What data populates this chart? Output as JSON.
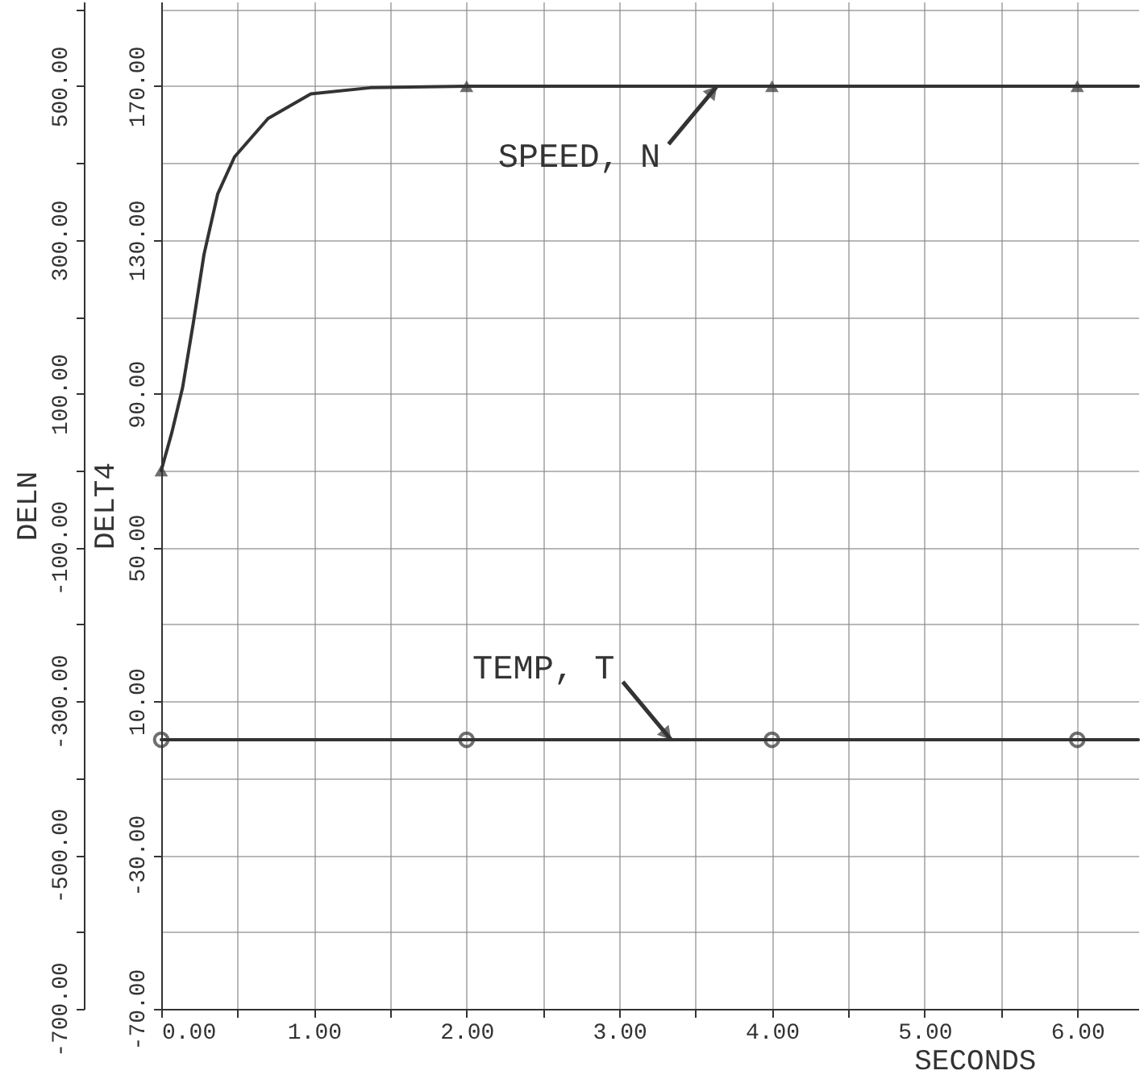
{
  "chart_data": {
    "type": "line",
    "xlabel": "SECONDS",
    "ylabel": "DELN",
    "y2label": "DELT4",
    "xlim": [
      0,
      6.4
    ],
    "xticks": [
      {
        "value": 0,
        "label": "0.00"
      },
      {
        "value": 0.5,
        "label": null
      },
      {
        "value": 1,
        "label": "1.00"
      },
      {
        "value": 1.5,
        "label": null
      },
      {
        "value": 2,
        "label": "2.00"
      },
      {
        "value": 2.5,
        "label": null
      },
      {
        "value": 3,
        "label": "3.00"
      },
      {
        "value": 3.5,
        "label": null
      },
      {
        "value": 4,
        "label": "4.00"
      },
      {
        "value": 4.5,
        "label": null
      },
      {
        "value": 5,
        "label": "5.00"
      },
      {
        "value": 5.5,
        "label": null
      },
      {
        "value": 6,
        "label": "6.00"
      }
    ],
    "ylim": [
      -700,
      610
    ],
    "yticks": [
      {
        "value": -700,
        "label": "-700.00"
      },
      {
        "value": -600,
        "label": null
      },
      {
        "value": -500,
        "label": "-500.00"
      },
      {
        "value": -400,
        "label": null
      },
      {
        "value": -300,
        "label": "-300.00"
      },
      {
        "value": -200,
        "label": null
      },
      {
        "value": -100,
        "label": "-100.00"
      },
      {
        "value": 0,
        "label": null
      },
      {
        "value": 100,
        "label": "100.00"
      },
      {
        "value": 200,
        "label": null
      },
      {
        "value": 300,
        "label": "300.00"
      },
      {
        "value": 400,
        "label": null
      },
      {
        "value": 500,
        "label": "500.00"
      },
      {
        "value": 600,
        "label": null
      }
    ],
    "y2lim": [
      -70,
      192
    ],
    "y2ticks": [
      {
        "value": -70,
        "label": "-70.00"
      },
      {
        "value": -30,
        "label": "-30.00"
      },
      {
        "value": 10,
        "label": "10.00"
      },
      {
        "value": 50,
        "label": "50.00"
      },
      {
        "value": 90,
        "label": "90.00"
      },
      {
        "value": 130,
        "label": "130.00"
      },
      {
        "value": 170,
        "label": "170.00"
      }
    ],
    "grid": true,
    "line_style": "solid",
    "series": [
      {
        "type": "line",
        "color": "#333333",
        "x": [
          0,
          0.07,
          0.14,
          0.21,
          0.28,
          0.37,
          0.48,
          0.7,
          0.98,
          1.37,
          2,
          4,
          6,
          6.4
        ],
        "values": [
          0,
          50,
          108,
          192,
          281,
          360,
          408,
          458,
          490,
          498,
          500,
          500,
          500,
          500
        ]
      },
      {
        "type": "line",
        "axis": "y2",
        "color": "#333333",
        "x": [
          0,
          6.4
        ],
        "values": [
          0,
          0
        ]
      },
      {
        "type": "scatter",
        "marker": "triangle",
        "color": "#333333",
        "x": [
          0,
          2,
          4,
          6
        ],
        "values": [
          0,
          500,
          500,
          500
        ]
      },
      {
        "type": "scatter",
        "marker": "circle",
        "axis": "y2",
        "color": "#333333",
        "x": [
          0,
          2,
          4,
          6
        ],
        "values": [
          0,
          0,
          0,
          0
        ]
      }
    ],
    "annotations": [
      {
        "text": "SPEED, N",
        "x": 3.64,
        "y": 500
      },
      {
        "text": "TEMP, T",
        "x": 3.34,
        "y": -350
      }
    ]
  }
}
